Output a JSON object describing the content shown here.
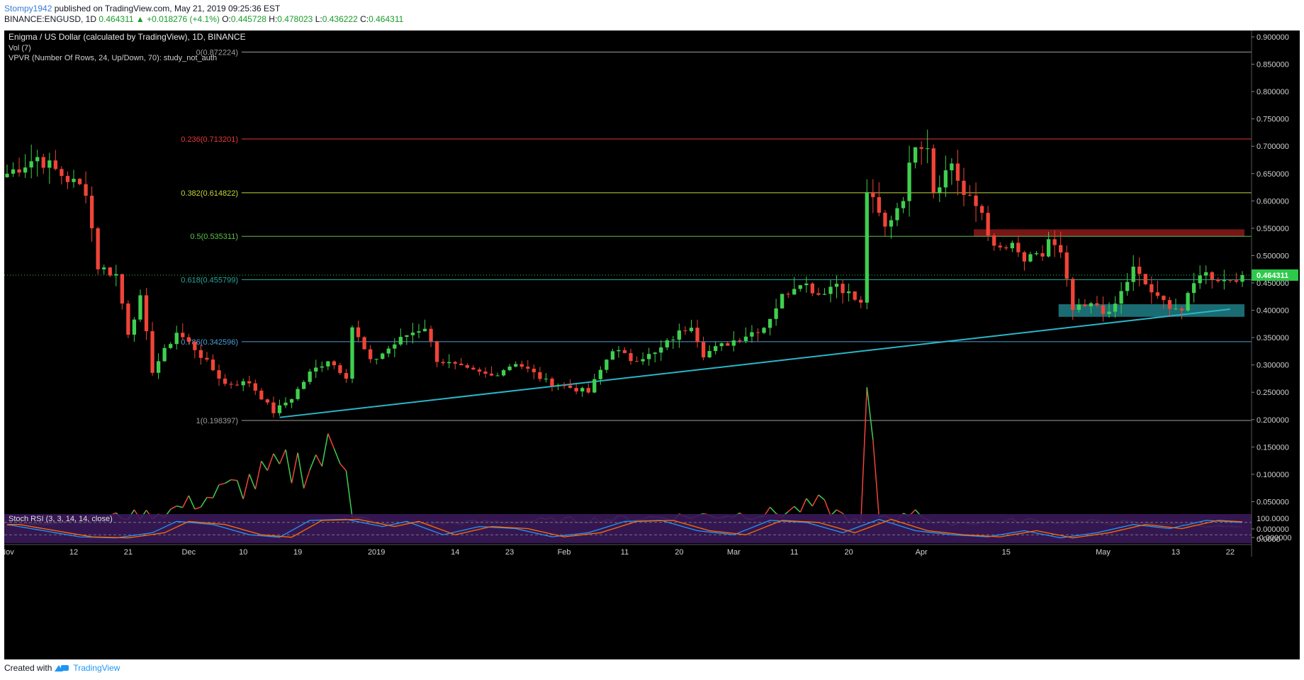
{
  "header": {
    "author": "Stompy1942",
    "published": "published on TradingView.com, May 21, 2019 09:25:36 EST"
  },
  "ohlc": {
    "symbol": "BINANCE:ENGUSD, 1D",
    "last": "0.464311",
    "change": "+0.018276 (+4.1%)",
    "open_label": "O:",
    "open": "0.445728",
    "high_label": "H:",
    "high": "0.478023",
    "low_label": "L:",
    "low": "0.436222",
    "close_label": "C:",
    "close": "0.464311"
  },
  "footer": {
    "created_with": "Created with",
    "brand": "TradingView"
  },
  "colors": {
    "background": "#000000",
    "up": "#3fcf4f",
    "down": "#f04438",
    "trendline": "#2ab6c8",
    "price_tag": "#2ec94a",
    "rsi_k": "#2196f3",
    "rsi_d": "#ff6d00",
    "rsi_band": "#3a1a5a"
  },
  "chart_data": {
    "type": "candlestick",
    "title": "Enigma / US Dollar (calculated by TradingView), 1D, BINANCE",
    "indicators": [
      "Vol (7)",
      "VPVR (Number Of Rows, 24, Up/Down, 70): study_not_auth"
    ],
    "y_scale": {
      "min": 0.0,
      "max": 0.9,
      "ticks": [
        "0.900000",
        "0.850000",
        "0.800000",
        "0.750000",
        "0.700000",
        "0.650000",
        "0.600000",
        "0.550000",
        "0.500000",
        "0.450000",
        "0.400000",
        "0.350000",
        "0.300000",
        "0.250000",
        "0.200000",
        "0.150000",
        "0.100000",
        "0.050000",
        "0.000000",
        "-0.000000"
      ]
    },
    "x_ticks": [
      {
        "label": "Nov",
        "idx": 0
      },
      {
        "label": "12",
        "idx": 11
      },
      {
        "label": "21",
        "idx": 20
      },
      {
        "label": "Dec",
        "idx": 30
      },
      {
        "label": "10",
        "idx": 39
      },
      {
        "label": "19",
        "idx": 48
      },
      {
        "label": "2019",
        "idx": 61
      },
      {
        "label": "14",
        "idx": 74
      },
      {
        "label": "23",
        "idx": 83
      },
      {
        "label": "Feb",
        "idx": 92
      },
      {
        "label": "11",
        "idx": 102
      },
      {
        "label": "20",
        "idx": 111
      },
      {
        "label": "Mar",
        "idx": 120
      },
      {
        "label": "11",
        "idx": 130
      },
      {
        "label": "20",
        "idx": 139
      },
      {
        "label": "Apr",
        "idx": 151
      },
      {
        "label": "15",
        "idx": 165
      },
      {
        "label": "May",
        "idx": 181
      },
      {
        "label": "13",
        "idx": 193
      },
      {
        "label": "22",
        "idx": 202
      }
    ],
    "last_price": "0.464311",
    "fib_levels": [
      {
        "label": "0(0.872224)",
        "value": 0.872224,
        "color": "#9e9e9e"
      },
      {
        "label": "0.236(0.713201)",
        "value": 0.713201,
        "color": "#e53935"
      },
      {
        "label": "0.382(0.614822)",
        "value": 0.614822,
        "color": "#c6d63a"
      },
      {
        "label": "0.5(0.535311)",
        "value": 0.535311,
        "color": "#5cc04a"
      },
      {
        "label": "0.618(0.455799)",
        "value": 0.455799,
        "color": "#26a69a"
      },
      {
        "label": "0.786(0.342596)",
        "value": 0.342596,
        "color": "#4a9fd8"
      },
      {
        "label": "1(0.198397)",
        "value": 0.198397,
        "color": "#9e9e9e"
      }
    ],
    "trendline": {
      "from": {
        "idx": 45,
        "value": 0.204
      },
      "to": {
        "idx": 202,
        "value": 0.402
      }
    },
    "zones": [
      {
        "from_idx": 160,
        "to_idx": 204,
        "low": 0.535,
        "high": 0.548,
        "color": "#8b1a1a"
      },
      {
        "from_idx": 174,
        "to_idx": 204,
        "low": 0.388,
        "high": 0.411,
        "color": "#1f7f86"
      }
    ],
    "keypoints": [
      {
        "idx": 0,
        "value": 0.65
      },
      {
        "idx": 5,
        "value": 0.68
      },
      {
        "idx": 10,
        "value": 0.64
      },
      {
        "idx": 13,
        "value": 0.62
      },
      {
        "idx": 15,
        "value": 0.48
      },
      {
        "idx": 18,
        "value": 0.465
      },
      {
        "idx": 20,
        "value": 0.36
      },
      {
        "idx": 22,
        "value": 0.42
      },
      {
        "idx": 24,
        "value": 0.29
      },
      {
        "idx": 28,
        "value": 0.36
      },
      {
        "idx": 31,
        "value": 0.33
      },
      {
        "idx": 36,
        "value": 0.265
      },
      {
        "idx": 40,
        "value": 0.268
      },
      {
        "idx": 44,
        "value": 0.214
      },
      {
        "idx": 47,
        "value": 0.24
      },
      {
        "idx": 50,
        "value": 0.285
      },
      {
        "idx": 53,
        "value": 0.31
      },
      {
        "idx": 56,
        "value": 0.28
      },
      {
        "idx": 57,
        "value": 0.37
      },
      {
        "idx": 60,
        "value": 0.305
      },
      {
        "idx": 66,
        "value": 0.355
      },
      {
        "idx": 69,
        "value": 0.37
      },
      {
        "idx": 71,
        "value": 0.31
      },
      {
        "idx": 76,
        "value": 0.29
      },
      {
        "idx": 80,
        "value": 0.28
      },
      {
        "idx": 84,
        "value": 0.305
      },
      {
        "idx": 89,
        "value": 0.27
      },
      {
        "idx": 96,
        "value": 0.25
      },
      {
        "idx": 100,
        "value": 0.33
      },
      {
        "idx": 103,
        "value": 0.31
      },
      {
        "idx": 107,
        "value": 0.32
      },
      {
        "idx": 110,
        "value": 0.35
      },
      {
        "idx": 113,
        "value": 0.375
      },
      {
        "idx": 115,
        "value": 0.32
      },
      {
        "idx": 121,
        "value": 0.35
      },
      {
        "idx": 125,
        "value": 0.37
      },
      {
        "idx": 128,
        "value": 0.425
      },
      {
        "idx": 131,
        "value": 0.455
      },
      {
        "idx": 134,
        "value": 0.43
      },
      {
        "idx": 137,
        "value": 0.45
      },
      {
        "idx": 141,
        "value": 0.41
      },
      {
        "idx": 142,
        "value": 0.62
      },
      {
        "idx": 145,
        "value": 0.55
      },
      {
        "idx": 148,
        "value": 0.61
      },
      {
        "idx": 150,
        "value": 0.71
      },
      {
        "idx": 152,
        "value": 0.705
      },
      {
        "idx": 153,
        "value": 0.62
      },
      {
        "idx": 156,
        "value": 0.67
      },
      {
        "idx": 158,
        "value": 0.61
      },
      {
        "idx": 161,
        "value": 0.58
      },
      {
        "idx": 163,
        "value": 0.51
      },
      {
        "idx": 166,
        "value": 0.515
      },
      {
        "idx": 168,
        "value": 0.49
      },
      {
        "idx": 171,
        "value": 0.5
      },
      {
        "idx": 172,
        "value": 0.53
      },
      {
        "idx": 174,
        "value": 0.5
      },
      {
        "idx": 176,
        "value": 0.4
      },
      {
        "idx": 180,
        "value": 0.41
      },
      {
        "idx": 182,
        "value": 0.39
      },
      {
        "idx": 186,
        "value": 0.475
      },
      {
        "idx": 190,
        "value": 0.42
      },
      {
        "idx": 194,
        "value": 0.4
      },
      {
        "idx": 197,
        "value": 0.47
      },
      {
        "idx": 201,
        "value": 0.455
      },
      {
        "idx": 204,
        "value": 0.464
      }
    ],
    "volume_keypoints": [
      {
        "idx": 0,
        "value": 0.005
      },
      {
        "idx": 4,
        "value": 0.01
      },
      {
        "idx": 26,
        "value": 0.03
      },
      {
        "idx": 56,
        "value": 0.147
      },
      {
        "idx": 57,
        "value": 0.03
      },
      {
        "idx": 61,
        "value": 0.008
      },
      {
        "idx": 100,
        "value": 0.018
      },
      {
        "idx": 128,
        "value": 0.03
      },
      {
        "idx": 134,
        "value": 0.045
      },
      {
        "idx": 141,
        "value": 0.01
      },
      {
        "idx": 142,
        "value": 0.22
      },
      {
        "idx": 144,
        "value": 0.025
      },
      {
        "idx": 148,
        "value": 0.022
      },
      {
        "idx": 150,
        "value": 0.04
      },
      {
        "idx": 153,
        "value": 0.01
      },
      {
        "idx": 168,
        "value": 0.015
      },
      {
        "idx": 190,
        "value": 0.01
      },
      {
        "idx": 204,
        "value": 0.003
      }
    ],
    "stoch_rsi": {
      "label": "Stoch RSI (3, 3, 14, 14, close)",
      "ticks": [
        "100.0000",
        "0.0000"
      ],
      "k_keypoints": [
        {
          "idx": 0,
          "value": 70
        },
        {
          "idx": 6,
          "value": 40
        },
        {
          "idx": 12,
          "value": 10
        },
        {
          "idx": 18,
          "value": 5
        },
        {
          "idx": 24,
          "value": 30
        },
        {
          "idx": 28,
          "value": 85
        },
        {
          "idx": 34,
          "value": 70
        },
        {
          "idx": 40,
          "value": 20
        },
        {
          "idx": 45,
          "value": 8
        },
        {
          "idx": 50,
          "value": 90
        },
        {
          "idx": 56,
          "value": 95
        },
        {
          "idx": 62,
          "value": 60
        },
        {
          "idx": 66,
          "value": 85
        },
        {
          "idx": 72,
          "value": 20
        },
        {
          "idx": 78,
          "value": 60
        },
        {
          "idx": 84,
          "value": 50
        },
        {
          "idx": 90,
          "value": 10
        },
        {
          "idx": 96,
          "value": 30
        },
        {
          "idx": 102,
          "value": 85
        },
        {
          "idx": 108,
          "value": 90
        },
        {
          "idx": 114,
          "value": 40
        },
        {
          "idx": 120,
          "value": 20
        },
        {
          "idx": 126,
          "value": 90
        },
        {
          "idx": 132,
          "value": 80
        },
        {
          "idx": 138,
          "value": 30
        },
        {
          "idx": 144,
          "value": 95
        },
        {
          "idx": 150,
          "value": 40
        },
        {
          "idx": 156,
          "value": 20
        },
        {
          "idx": 162,
          "value": 10
        },
        {
          "idx": 168,
          "value": 40
        },
        {
          "idx": 174,
          "value": 5
        },
        {
          "idx": 180,
          "value": 30
        },
        {
          "idx": 186,
          "value": 70
        },
        {
          "idx": 192,
          "value": 50
        },
        {
          "idx": 198,
          "value": 90
        },
        {
          "idx": 204,
          "value": 80
        }
      ]
    }
  }
}
